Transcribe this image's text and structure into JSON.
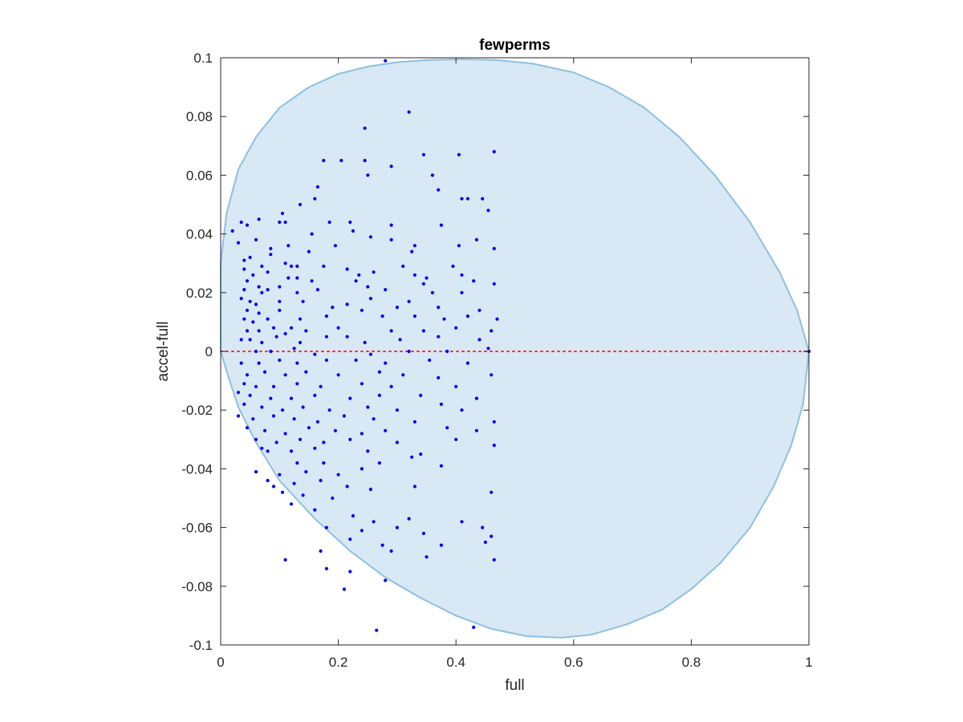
{
  "chart_data": {
    "type": "scatter",
    "title": "fewperms",
    "xlabel": "full",
    "ylabel": "accel-full",
    "xlim": [
      0,
      1
    ],
    "ylim": [
      -0.1,
      0.1
    ],
    "xticks": [
      "0",
      "0.2",
      "0.4",
      "0.6",
      "0.8",
      "1"
    ],
    "yticks": [
      "-0.1",
      "-0.08",
      "-0.06",
      "-0.04",
      "-0.02",
      "0",
      "0.02",
      "0.04",
      "0.06",
      "0.08",
      "0.1"
    ],
    "grid": false,
    "legend": "none",
    "region": {
      "shape": "filled closed curve",
      "boundary": [
        [
          0,
          0.03
        ],
        [
          0.01,
          0.047
        ],
        [
          0.03,
          0.062
        ],
        [
          0.06,
          0.073
        ],
        [
          0.1,
          0.083
        ],
        [
          0.15,
          0.09
        ],
        [
          0.2,
          0.0945
        ],
        [
          0.25,
          0.097
        ],
        [
          0.3,
          0.0985
        ],
        [
          0.35,
          0.0992
        ],
        [
          0.41,
          0.0995
        ],
        [
          0.47,
          0.0992
        ],
        [
          0.53,
          0.098
        ],
        [
          0.6,
          0.095
        ],
        [
          0.66,
          0.09
        ],
        [
          0.72,
          0.083
        ],
        [
          0.78,
          0.073
        ],
        [
          0.84,
          0.06
        ],
        [
          0.9,
          0.044
        ],
        [
          0.95,
          0.027
        ],
        [
          0.98,
          0.014
        ],
        [
          1.0,
          0.0
        ],
        [
          0.99,
          -0.018
        ],
        [
          0.97,
          -0.032
        ],
        [
          0.94,
          -0.046
        ],
        [
          0.9,
          -0.06
        ],
        [
          0.85,
          -0.072
        ],
        [
          0.8,
          -0.081
        ],
        [
          0.75,
          -0.088
        ],
        [
          0.69,
          -0.093
        ],
        [
          0.63,
          -0.0965
        ],
        [
          0.58,
          -0.0975
        ],
        [
          0.52,
          -0.097
        ],
        [
          0.46,
          -0.0945
        ],
        [
          0.4,
          -0.09
        ],
        [
          0.34,
          -0.084
        ],
        [
          0.28,
          -0.077
        ],
        [
          0.22,
          -0.068
        ],
        [
          0.16,
          -0.057
        ],
        [
          0.1,
          -0.044
        ],
        [
          0.06,
          -0.031
        ],
        [
          0.03,
          -0.019
        ],
        [
          0.012,
          -0.008
        ],
        [
          0.003,
          -0.002
        ],
        [
          0,
          0.0
        ]
      ],
      "fill_color": "#d8e8f4",
      "edge_color": "#8ec0e1"
    },
    "zero_line": {
      "y": 0,
      "color": "#ff2a2a",
      "style": "dotted"
    },
    "series": [
      {
        "marker_color": "#0000ee",
        "points": [
          [
            0.28,
            0.099
          ],
          [
            0.32,
            0.0815
          ],
          [
            0.245,
            0.076
          ],
          [
            0.465,
            0.068
          ],
          [
            0.345,
            0.067
          ],
          [
            0.405,
            0.067
          ],
          [
            0.205,
            0.065
          ],
          [
            0.245,
            0.065
          ],
          [
            0.175,
            0.065
          ],
          [
            0.29,
            0.063
          ],
          [
            0.25,
            0.06
          ],
          [
            0.36,
            0.06
          ],
          [
            0.165,
            0.056
          ],
          [
            0.37,
            0.055
          ],
          [
            0.445,
            0.052
          ],
          [
            0.41,
            0.052
          ],
          [
            0.16,
            0.052
          ],
          [
            0.42,
            0.052
          ],
          [
            0.135,
            0.05
          ],
          [
            0.455,
            0.048
          ],
          [
            0.105,
            0.047
          ],
          [
            0.065,
            0.045
          ],
          [
            0.1,
            0.044
          ],
          [
            0.11,
            0.044
          ],
          [
            0.035,
            0.044
          ],
          [
            0.045,
            0.043
          ],
          [
            0.185,
            0.044
          ],
          [
            0.22,
            0.044
          ],
          [
            0.29,
            0.043
          ],
          [
            0.225,
            0.041
          ],
          [
            0.155,
            0.04
          ],
          [
            0.375,
            0.043
          ],
          [
            0.02,
            0.041
          ],
          [
            0.29,
            0.038
          ],
          [
            0.06,
            0.038
          ],
          [
            0.115,
            0.036
          ],
          [
            0.195,
            0.036
          ],
          [
            0.255,
            0.039
          ],
          [
            0.435,
            0.038
          ],
          [
            0.33,
            0.036
          ],
          [
            0.03,
            0.037
          ],
          [
            0.085,
            0.035
          ],
          [
            0.405,
            0.036
          ],
          [
            0.465,
            0.035
          ],
          [
            0.325,
            0.034
          ],
          [
            0.085,
            0.033
          ],
          [
            0.15,
            0.034
          ],
          [
            0.05,
            0.032
          ],
          [
            0.11,
            0.03
          ],
          [
            0.04,
            0.031
          ],
          [
            0.07,
            0.029
          ],
          [
            0.12,
            0.029
          ],
          [
            0.13,
            0.029
          ],
          [
            0.175,
            0.029
          ],
          [
            0.215,
            0.028
          ],
          [
            0.235,
            0.026
          ],
          [
            0.26,
            0.027
          ],
          [
            0.31,
            0.029
          ],
          [
            0.395,
            0.029
          ],
          [
            0.04,
            0.028
          ],
          [
            0.055,
            0.026
          ],
          [
            0.08,
            0.027
          ],
          [
            0.045,
            0.024
          ],
          [
            0.065,
            0.022
          ],
          [
            0.115,
            0.025
          ],
          [
            0.13,
            0.025
          ],
          [
            0.155,
            0.024
          ],
          [
            0.25,
            0.022
          ],
          [
            0.33,
            0.026
          ],
          [
            0.35,
            0.025
          ],
          [
            0.41,
            0.026
          ],
          [
            0.04,
            0.021
          ],
          [
            0.07,
            0.02
          ],
          [
            0.08,
            0.021
          ],
          [
            0.1,
            0.022
          ],
          [
            0.13,
            0.02
          ],
          [
            0.165,
            0.021
          ],
          [
            0.23,
            0.024
          ],
          [
            0.28,
            0.021
          ],
          [
            0.345,
            0.023
          ],
          [
            0.43,
            0.024
          ],
          [
            0.465,
            0.023
          ],
          [
            0.035,
            0.018
          ],
          [
            0.05,
            0.017
          ],
          [
            0.06,
            0.016
          ],
          [
            0.1,
            0.017
          ],
          [
            0.14,
            0.017
          ],
          [
            0.215,
            0.016
          ],
          [
            0.255,
            0.018
          ],
          [
            0.32,
            0.017
          ],
          [
            0.36,
            0.02
          ],
          [
            0.41,
            0.02
          ],
          [
            0.045,
            0.014
          ],
          [
            0.065,
            0.013
          ],
          [
            0.1,
            0.014
          ],
          [
            0.19,
            0.015
          ],
          [
            0.24,
            0.014
          ],
          [
            0.3,
            0.015
          ],
          [
            0.37,
            0.015
          ],
          [
            0.44,
            0.014
          ],
          [
            0.04,
            0.011
          ],
          [
            0.055,
            0.01
          ],
          [
            0.08,
            0.011
          ],
          [
            0.135,
            0.011
          ],
          [
            0.18,
            0.012
          ],
          [
            0.275,
            0.012
          ],
          [
            0.33,
            0.012
          ],
          [
            0.38,
            0.011
          ],
          [
            0.42,
            0.012
          ],
          [
            0.47,
            0.011
          ],
          [
            0.045,
            0.007
          ],
          [
            0.065,
            0.007
          ],
          [
            0.09,
            0.008
          ],
          [
            0.11,
            0.006
          ],
          [
            0.12,
            0.008
          ],
          [
            0.145,
            0.007
          ],
          [
            0.2,
            0.008
          ],
          [
            0.29,
            0.007
          ],
          [
            0.345,
            0.007
          ],
          [
            0.4,
            0.008
          ],
          [
            0.46,
            0.007
          ],
          [
            0.035,
            0.004
          ],
          [
            0.05,
            0.004
          ],
          [
            0.07,
            0.003
          ],
          [
            0.095,
            0.005
          ],
          [
            0.135,
            0.003
          ],
          [
            0.18,
            0.005
          ],
          [
            0.215,
            0.005
          ],
          [
            0.245,
            0.003
          ],
          [
            0.305,
            0.004
          ],
          [
            0.37,
            0.005
          ],
          [
            0.44,
            0.004
          ],
          [
            0.06,
            0.0
          ],
          [
            0.085,
            0.0
          ],
          [
            0.125,
            0.001
          ],
          [
            0.16,
            -0.001
          ],
          [
            0.255,
            -0.001
          ],
          [
            0.32,
            0.0
          ],
          [
            0.385,
            0.0
          ],
          [
            0.455,
            0.001
          ],
          [
            0.035,
            -0.004
          ],
          [
            0.065,
            -0.004
          ],
          [
            0.1,
            -0.003
          ],
          [
            0.13,
            -0.004
          ],
          [
            0.18,
            -0.003
          ],
          [
            0.23,
            -0.003
          ],
          [
            0.28,
            -0.004
          ],
          [
            0.355,
            -0.003
          ],
          [
            0.42,
            -0.004
          ],
          [
            0.045,
            -0.008
          ],
          [
            0.075,
            -0.007
          ],
          [
            0.11,
            -0.008
          ],
          [
            0.145,
            -0.007
          ],
          [
            0.2,
            -0.008
          ],
          [
            0.27,
            -0.007
          ],
          [
            0.31,
            -0.008
          ],
          [
            0.37,
            -0.009
          ],
          [
            0.46,
            -0.008
          ],
          [
            0.04,
            -0.011
          ],
          [
            0.06,
            -0.012
          ],
          [
            0.09,
            -0.012
          ],
          [
            0.13,
            -0.011
          ],
          [
            0.17,
            -0.012
          ],
          [
            0.24,
            -0.011
          ],
          [
            0.29,
            -0.012
          ],
          [
            0.4,
            -0.012
          ],
          [
            0.03,
            -0.014
          ],
          [
            0.05,
            -0.015
          ],
          [
            0.085,
            -0.016
          ],
          [
            0.12,
            -0.016
          ],
          [
            0.16,
            -0.015
          ],
          [
            0.22,
            -0.016
          ],
          [
            0.27,
            -0.015
          ],
          [
            0.34,
            -0.015
          ],
          [
            0.435,
            -0.016
          ],
          [
            0.04,
            -0.018
          ],
          [
            0.07,
            -0.019
          ],
          [
            0.105,
            -0.02
          ],
          [
            0.14,
            -0.019
          ],
          [
            0.185,
            -0.02
          ],
          [
            0.25,
            -0.019
          ],
          [
            0.3,
            -0.02
          ],
          [
            0.375,
            -0.018
          ],
          [
            0.41,
            -0.02
          ],
          [
            0.03,
            -0.022
          ],
          [
            0.055,
            -0.023
          ],
          [
            0.09,
            -0.022
          ],
          [
            0.125,
            -0.023
          ],
          [
            0.165,
            -0.024
          ],
          [
            0.21,
            -0.022
          ],
          [
            0.26,
            -0.023
          ],
          [
            0.33,
            -0.024
          ],
          [
            0.465,
            -0.024
          ],
          [
            0.045,
            -0.026
          ],
          [
            0.075,
            -0.027
          ],
          [
            0.11,
            -0.028
          ],
          [
            0.15,
            -0.026
          ],
          [
            0.195,
            -0.027
          ],
          [
            0.24,
            -0.028
          ],
          [
            0.28,
            -0.027
          ],
          [
            0.385,
            -0.026
          ],
          [
            0.435,
            -0.027
          ],
          [
            0.06,
            -0.03
          ],
          [
            0.095,
            -0.031
          ],
          [
            0.135,
            -0.03
          ],
          [
            0.175,
            -0.031
          ],
          [
            0.22,
            -0.03
          ],
          [
            0.3,
            -0.031
          ],
          [
            0.4,
            -0.03
          ],
          [
            0.07,
            -0.033
          ],
          [
            0.12,
            -0.034
          ],
          [
            0.16,
            -0.033
          ],
          [
            0.25,
            -0.034
          ],
          [
            0.34,
            -0.035
          ],
          [
            0.465,
            -0.032
          ],
          [
            0.08,
            -0.034
          ],
          [
            0.13,
            -0.038
          ],
          [
            0.175,
            -0.038
          ],
          [
            0.27,
            -0.038
          ],
          [
            0.325,
            -0.036
          ],
          [
            0.375,
            -0.039
          ],
          [
            0.06,
            -0.041
          ],
          [
            0.1,
            -0.042
          ],
          [
            0.145,
            -0.041
          ],
          [
            0.2,
            -0.042
          ],
          [
            0.24,
            -0.04
          ],
          [
            0.08,
            -0.044
          ],
          [
            0.125,
            -0.045
          ],
          [
            0.17,
            -0.044
          ],
          [
            0.215,
            -0.046
          ],
          [
            0.255,
            -0.047
          ],
          [
            0.33,
            -0.046
          ],
          [
            0.09,
            -0.046
          ],
          [
            0.105,
            -0.048
          ],
          [
            0.14,
            -0.049
          ],
          [
            0.19,
            -0.05
          ],
          [
            0.46,
            -0.048
          ],
          [
            0.12,
            -0.052
          ],
          [
            0.16,
            -0.054
          ],
          [
            0.225,
            -0.056
          ],
          [
            0.26,
            -0.058
          ],
          [
            0.32,
            -0.057
          ],
          [
            0.41,
            -0.058
          ],
          [
            0.445,
            -0.06
          ],
          [
            0.18,
            -0.06
          ],
          [
            0.24,
            -0.061
          ],
          [
            0.3,
            -0.06
          ],
          [
            0.345,
            -0.062
          ],
          [
            0.22,
            -0.064
          ],
          [
            0.275,
            -0.066
          ],
          [
            0.375,
            -0.066
          ],
          [
            0.46,
            -0.063
          ],
          [
            0.17,
            -0.068
          ],
          [
            0.29,
            -0.068
          ],
          [
            0.45,
            -0.065
          ],
          [
            0.11,
            -0.071
          ],
          [
            0.35,
            -0.07
          ],
          [
            0.465,
            -0.071
          ],
          [
            0.18,
            -0.074
          ],
          [
            0.22,
            -0.075
          ],
          [
            0.28,
            -0.078
          ],
          [
            0.21,
            -0.081
          ],
          [
            0.265,
            -0.095
          ],
          [
            0.43,
            -0.094
          ],
          [
            1.0,
            0.0
          ]
        ]
      }
    ]
  }
}
